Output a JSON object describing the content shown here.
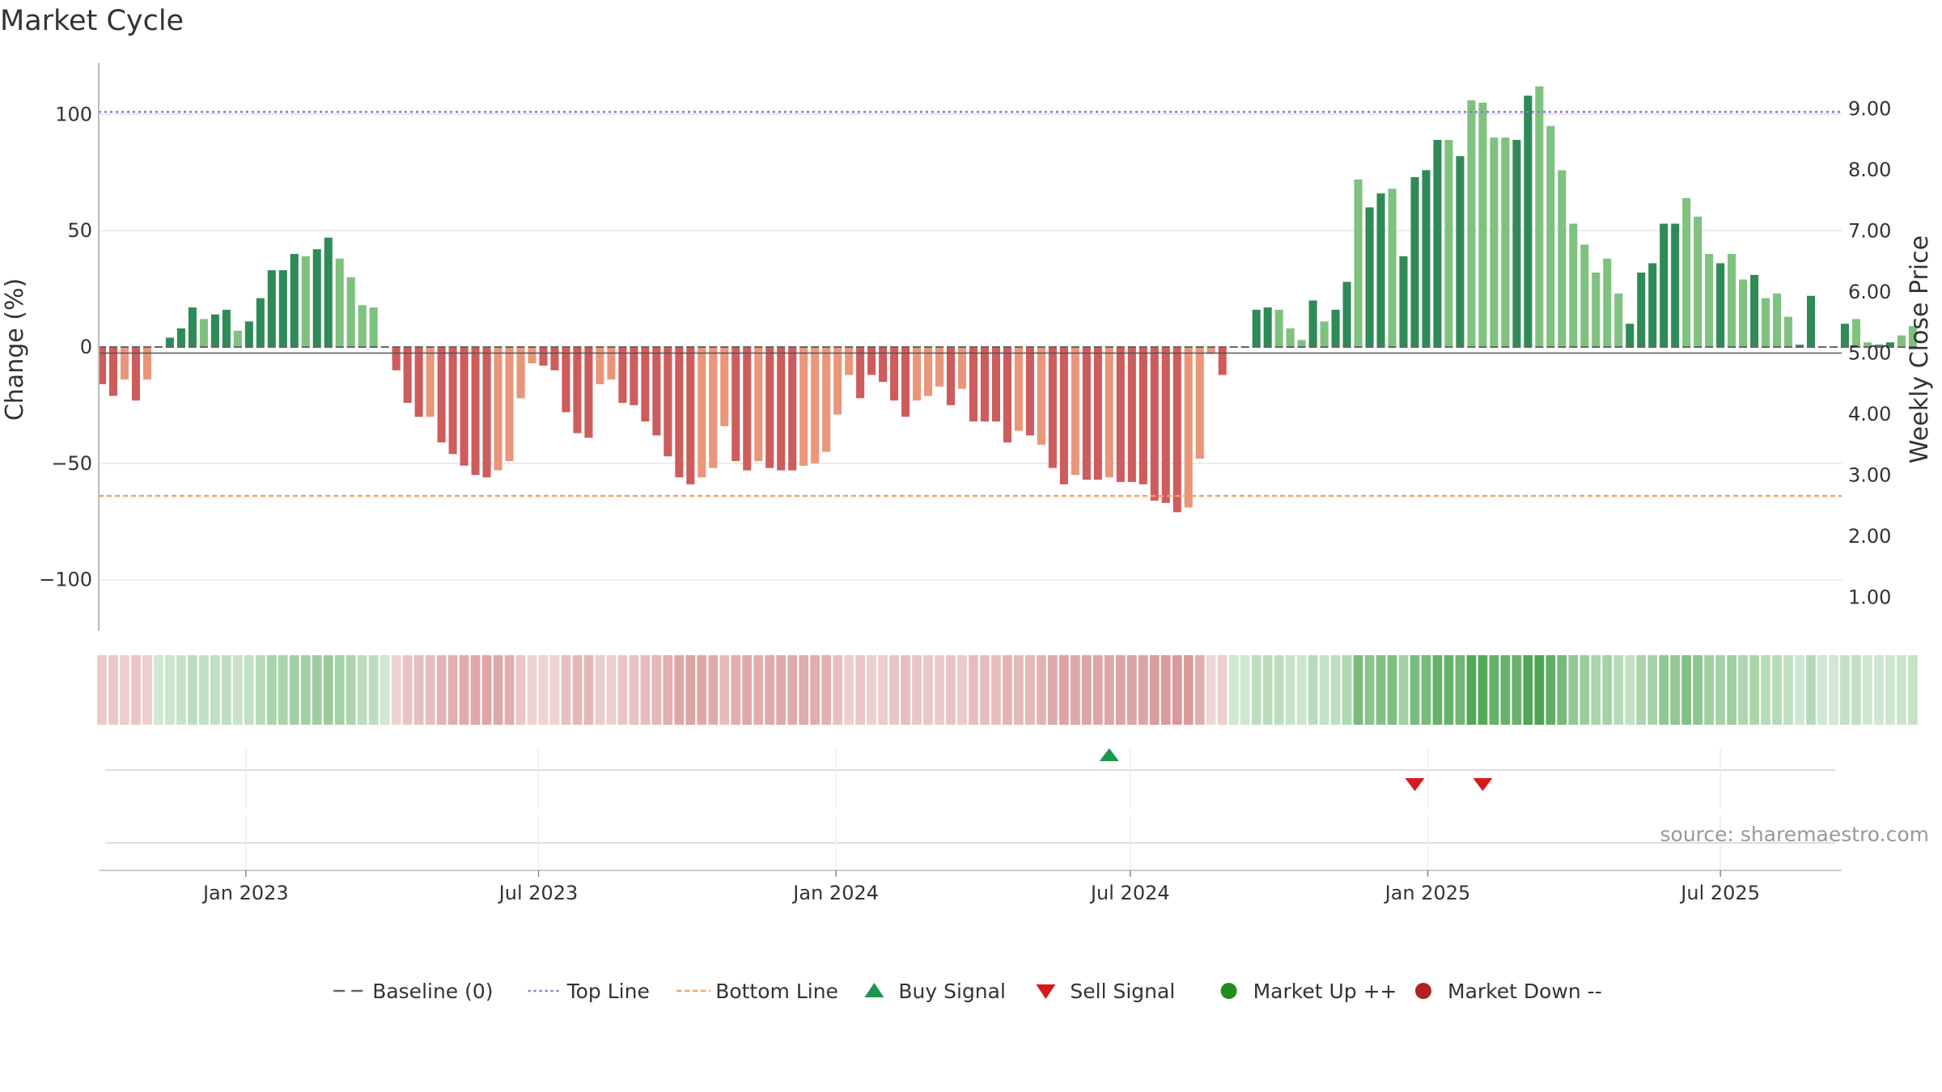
{
  "chart_data": {
    "type": "bar",
    "title": "Market Cycle",
    "ylabel": "Change (%)",
    "y2label": "Weekly Close Price",
    "ylim": [
      -122,
      122
    ],
    "y2lim": [
      0.45,
      9.75
    ],
    "yticks": [
      -100,
      -50,
      0,
      50,
      100
    ],
    "yticklabels": [
      "−100",
      "−50",
      "0",
      "50",
      "100"
    ],
    "y2ticks": [
      1,
      2,
      3,
      4,
      5,
      6,
      7,
      8,
      9
    ],
    "y2ticklabels": [
      "1.00",
      "2.00",
      "3.00",
      "4.00",
      "5.00",
      "6.00",
      "7.00",
      "8.00",
      "9.00"
    ],
    "top_line": 101,
    "bottom_line": -64,
    "xlim": [
      "2022-10-02",
      "2025-09-14"
    ],
    "xticks": [
      "2023-01-01",
      "2023-07-01",
      "2024-01-01",
      "2024-07-01",
      "2025-01-01",
      "2025-07-01"
    ],
    "xticklabels": [
      "Jan 2023",
      "Jul 2023",
      "Jan 2024",
      "Jul 2024",
      "Jan 2025",
      "Jul 2025"
    ],
    "start_date": "2022-10-04",
    "interval_days": 7,
    "values": [
      -16,
      -21,
      -14,
      -23,
      -14,
      0,
      4,
      8,
      17,
      12,
      14,
      16,
      7,
      11,
      21,
      33,
      33,
      40,
      39,
      42,
      47,
      38,
      30,
      18,
      17,
      0,
      -10,
      -24,
      -30,
      -30,
      -41,
      -46,
      -51,
      -55,
      -56,
      -53,
      -49,
      -22,
      -7,
      -8,
      -10,
      -28,
      -37,
      -39,
      -16,
      -14,
      -24,
      -25,
      -32,
      -38,
      -47,
      -56,
      -59,
      -56,
      -52,
      -34,
      -49,
      -53,
      -49,
      -52,
      -53,
      -53,
      -51,
      -50,
      -45,
      -29,
      -12,
      -22,
      -12,
      -15,
      -23,
      -30,
      -23,
      -21,
      -17,
      -25,
      -18,
      -32,
      -32,
      -32,
      -41,
      -36,
      -38,
      -42,
      -52,
      -59,
      -55,
      -57,
      -57,
      -56,
      -58,
      -58,
      -59,
      -66,
      -67,
      -71,
      -69,
      -48,
      -3,
      -12,
      0,
      0,
      16,
      17,
      16,
      8,
      3,
      20,
      11,
      16,
      28,
      72,
      60,
      66,
      68,
      39,
      73,
      76,
      89,
      89,
      82,
      106,
      105,
      90,
      90,
      89,
      108,
      112,
      95,
      76,
      53,
      44,
      32,
      38,
      23,
      10,
      32,
      36,
      53,
      53,
      64,
      56,
      40,
      36,
      40,
      29,
      31,
      21,
      23,
      13,
      1,
      22,
      0,
      0,
      10,
      12,
      2,
      1,
      2,
      5,
      9
    ],
    "shades": [
      1,
      1,
      0,
      1,
      0,
      1,
      1,
      1,
      1,
      0,
      1,
      1,
      0,
      1,
      1,
      1,
      1,
      1,
      0,
      1,
      1,
      0,
      0,
      0,
      0,
      1,
      1,
      1,
      1,
      0,
      1,
      1,
      1,
      1,
      1,
      0,
      0,
      0,
      0,
      1,
      1,
      1,
      1,
      1,
      0,
      0,
      1,
      1,
      1,
      1,
      1,
      1,
      1,
      0,
      0,
      0,
      1,
      1,
      0,
      1,
      1,
      1,
      0,
      0,
      0,
      0,
      0,
      1,
      1,
      1,
      1,
      1,
      0,
      0,
      0,
      1,
      0,
      1,
      1,
      1,
      1,
      0,
      1,
      0,
      1,
      1,
      0,
      1,
      1,
      0,
      1,
      1,
      1,
      1,
      1,
      1,
      0,
      0,
      0,
      1,
      1,
      1,
      1,
      1,
      0,
      0,
      0,
      1,
      0,
      1,
      1,
      0,
      1,
      1,
      0,
      1,
      1,
      1,
      1,
      0,
      1,
      0,
      0,
      0,
      0,
      1,
      1,
      0,
      0,
      0,
      0,
      0,
      0,
      0,
      0,
      1,
      1,
      1,
      1,
      1,
      0,
      0,
      0,
      1,
      0,
      0,
      1,
      0,
      0,
      0,
      1,
      1,
      1,
      1,
      1,
      0,
      0,
      1,
      1,
      0,
      0
    ],
    "price_line": 5.0,
    "colors": {
      "up_dark": "#2e8b57",
      "up_light": "#7fc17f",
      "down_dark": "#cd5c5c",
      "down_light": "#e9967a",
      "top_line": "#9370db",
      "bottom_line": "#f4a460",
      "baseline": "#808080",
      "grid": "#e6e6e6",
      "buy": "#1a9850",
      "sell": "#d7191c",
      "market_up": "#228b22",
      "market_down": "#b22222"
    },
    "buy_signals": [
      "2024-06-18"
    ],
    "sell_signals": [
      "2024-12-24",
      "2025-02-04"
    ],
    "source": "source: sharemaestro.com",
    "legend": {
      "placement": "bottom-center",
      "items": [
        {
          "label": "Baseline (0)",
          "marker": "dash",
          "color": "#666666"
        },
        {
          "label": "Top Line",
          "marker": "dotted",
          "color": "#9370db"
        },
        {
          "label": "Bottom Line",
          "marker": "dashed",
          "color": "#f4a460"
        },
        {
          "label": "Buy Signal",
          "marker": "triangle-up",
          "color": "#1a9850"
        },
        {
          "label": "Sell Signal",
          "marker": "triangle-down",
          "color": "#d7191c"
        },
        {
          "label": "Market Up ++",
          "marker": "circle",
          "color": "#228b22"
        },
        {
          "label": "Market Down --",
          "marker": "circle",
          "color": "#b22222"
        }
      ]
    }
  }
}
